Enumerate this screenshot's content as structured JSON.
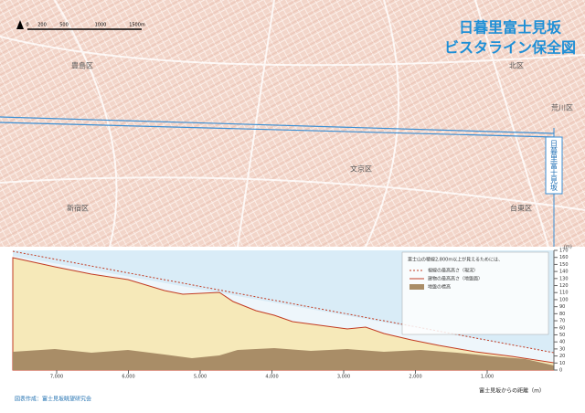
{
  "header": {
    "title_line1": "日暮里富士見坂",
    "title_line2": "ビスタライン保全図"
  },
  "map": {
    "scale_labels": [
      "0",
      "200",
      "500",
      "1000",
      "1500m"
    ],
    "districts": [
      "豊島区",
      "北区",
      "荒川区",
      "文京区",
      "新宿区",
      "台東区"
    ],
    "marker": "日暮里富士見坂"
  },
  "profile": {
    "y_unit": "(m)",
    "yticks": [
      0,
      10,
      20,
      30,
      40,
      50,
      60,
      70,
      80,
      90,
      100,
      110,
      120,
      130,
      140,
      150,
      160,
      170
    ],
    "xticks": [
      "7,000",
      "6,000",
      "5,000",
      "4,000",
      "3,000",
      "2,000",
      "1,000"
    ],
    "x_label": "富士見坂からの距離（m）",
    "legend": {
      "heading": "富士山の稜線2,800m以上が見えるためには、",
      "items": [
        "視線の最高高さ（現況）",
        "建物の最高高さ（地盤面）",
        "地盤の標高"
      ]
    }
  },
  "credit": "図表作成：富士見坂眺望研究会"
}
